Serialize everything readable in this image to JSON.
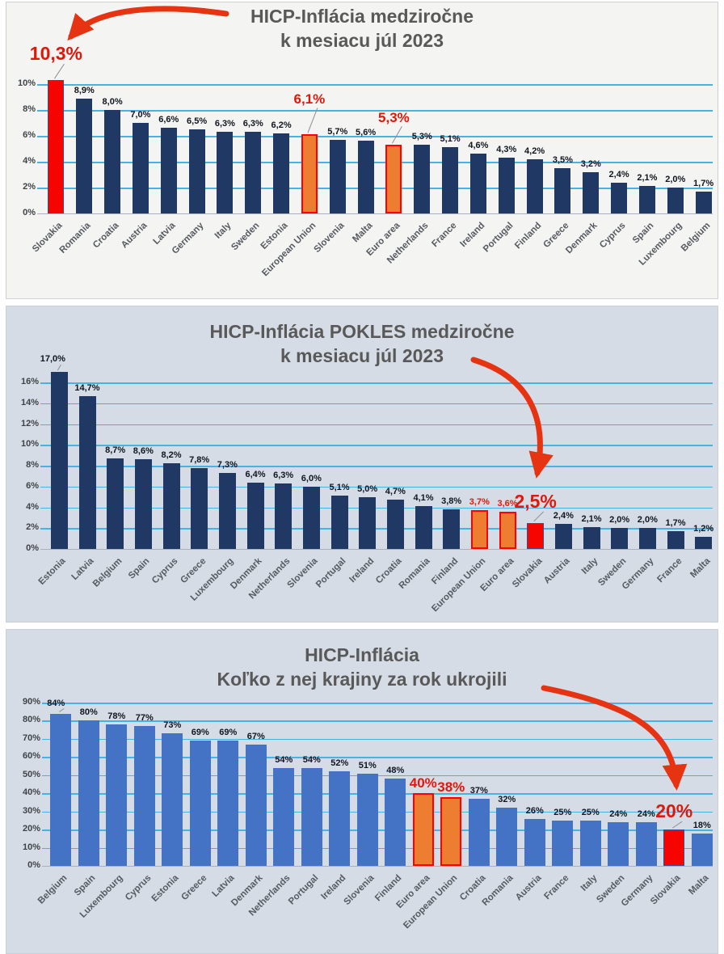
{
  "colors": {
    "navy_bar": "#1f3864",
    "blue_bar": "#4472c4",
    "red_bar": "#f50400",
    "orange_bar": "#ed7d31",
    "orange_border": "#fe0000",
    "gridline": "#45b4e2",
    "title_text": "#595959",
    "label_dark": "#10151f",
    "label_red": "#e0180b",
    "arrow_red": "#e63312",
    "panel1_bg": "#f4f4f2",
    "panel2_bg": "#d6dce5",
    "panel3_bg": "#d6dce5"
  },
  "chart_data": [
    {
      "type": "bar",
      "title": "HICP-Inflácia medziročne k mesiacu júl 2023",
      "title_line1": "HICP-Inflácia medziročne",
      "title_line2": "k mesiacu júl 2023",
      "xlabel": "",
      "ylabel": "",
      "ylim": [
        0,
        10.5
      ],
      "grid": true,
      "legend": "none",
      "yticks": [
        "0%",
        "2%",
        "4%",
        "6%",
        "8%",
        "10%"
      ],
      "default_fill": "navy",
      "arrow_target": "Slovakia",
      "bars": [
        {
          "category": "Slovakia",
          "value": 10.3,
          "display": "10,3%",
          "fill": "red",
          "label_size": "xl",
          "label_color": "red",
          "label_dy": -46,
          "leader": true
        },
        {
          "category": "Romania",
          "value": 8.9,
          "display": "8,9%"
        },
        {
          "category": "Croatia",
          "value": 8.0,
          "display": "8,0%"
        },
        {
          "category": "Austria",
          "value": 7.0,
          "display": "7,0%"
        },
        {
          "category": "Latvia",
          "value": 6.6,
          "display": "6,6%"
        },
        {
          "category": "Germany",
          "value": 6.5,
          "display": "6,5%"
        },
        {
          "category": "Italy",
          "value": 6.3,
          "display": "6,3%"
        },
        {
          "category": "Sweden",
          "value": 6.3,
          "display": "6,3%"
        },
        {
          "category": "Estonia",
          "value": 6.2,
          "display": "6,2%"
        },
        {
          "category": "European Union",
          "value": 6.1,
          "display": "6,1%",
          "fill": "orange",
          "label_size": "l",
          "label_color": "red",
          "label_dy": -53,
          "leader": true
        },
        {
          "category": "Slovenia",
          "value": 5.7,
          "display": "5,7%"
        },
        {
          "category": "Malta",
          "value": 5.6,
          "display": "5,6%"
        },
        {
          "category": "Euro area",
          "value": 5.3,
          "display": "5,3%",
          "fill": "orange",
          "label_size": "l",
          "label_color": "red",
          "label_dy": -43,
          "leader": true
        },
        {
          "category": "Netherlands",
          "value": 5.3,
          "display": "5,3%"
        },
        {
          "category": "France",
          "value": 5.1,
          "display": "5,1%"
        },
        {
          "category": "Ireland",
          "value": 4.6,
          "display": "4,6%"
        },
        {
          "category": "Portugal",
          "value": 4.3,
          "display": "4,3%"
        },
        {
          "category": "Finland",
          "value": 4.2,
          "display": "4,2%"
        },
        {
          "category": "Greece",
          "value": 3.5,
          "display": "3,5%"
        },
        {
          "category": "Denmark",
          "value": 3.2,
          "display": "3,2%"
        },
        {
          "category": "Cyprus",
          "value": 2.4,
          "display": "2,4%"
        },
        {
          "category": "Spain",
          "value": 2.1,
          "display": "2,1%"
        },
        {
          "category": "Luxembourg",
          "value": 2.0,
          "display": "2,0%"
        },
        {
          "category": "Belgium",
          "value": 1.7,
          "display": "1,7%"
        }
      ]
    },
    {
      "type": "bar",
      "title": "HICP-Inflácia POKLES medziročne k mesiacu júl 2023",
      "title_line1": "HICP-Inflácia POKLES medziročne",
      "title_line2": "k mesiacu júl 2023",
      "xlabel": "",
      "ylabel": "",
      "ylim": [
        0,
        17.5
      ],
      "grid": true,
      "legend": "none",
      "yticks": [
        "0%",
        "2%",
        "4%",
        "6%",
        "8%",
        "10%",
        "12%",
        "14%",
        "16%"
      ],
      "default_fill": "navy",
      "arrow_target": "Slovakia",
      "bars": [
        {
          "category": "Estonia",
          "value": 17.0,
          "display": "17,0%",
          "label_dy": -22,
          "label_dx": -8,
          "leader": true
        },
        {
          "category": "Latvia",
          "value": 14.7,
          "display": "14,7%"
        },
        {
          "category": "Belgium",
          "value": 8.7,
          "display": "8,7%"
        },
        {
          "category": "Spain",
          "value": 8.6,
          "display": "8,6%"
        },
        {
          "category": "Cyprus",
          "value": 8.2,
          "display": "8,2%"
        },
        {
          "category": "Greece",
          "value": 7.8,
          "display": "7,8%"
        },
        {
          "category": "Luxembourg",
          "value": 7.3,
          "display": "7,3%"
        },
        {
          "category": "Denmark",
          "value": 6.4,
          "display": "6,4%"
        },
        {
          "category": "Netherlands",
          "value": 6.3,
          "display": "6,3%"
        },
        {
          "category": "Slovenia",
          "value": 6.0,
          "display": "6,0%"
        },
        {
          "category": "Portugal",
          "value": 5.1,
          "display": "5,1%"
        },
        {
          "category": "Ireland",
          "value": 5.0,
          "display": "5,0%"
        },
        {
          "category": "Croatia",
          "value": 4.7,
          "display": "4,7%"
        },
        {
          "category": "Romania",
          "value": 4.1,
          "display": "4,1%"
        },
        {
          "category": "Finland",
          "value": 3.8,
          "display": "3,8%"
        },
        {
          "category": "European Union",
          "value": 3.7,
          "display": "3,7%",
          "fill": "orange",
          "label_color": "red"
        },
        {
          "category": "Euro area",
          "value": 3.6,
          "display": "3,6%",
          "fill": "orange",
          "label_color": "red"
        },
        {
          "category": "Slovakia",
          "value": 2.5,
          "display": "2,5%",
          "fill": "red",
          "label_size": "xl",
          "label_color": "red",
          "label_dy": -40,
          "leader": true
        },
        {
          "category": "Austria",
          "value": 2.4,
          "display": "2,4%"
        },
        {
          "category": "Italy",
          "value": 2.1,
          "display": "2,1%"
        },
        {
          "category": "Sweden",
          "value": 2.0,
          "display": "2,0%"
        },
        {
          "category": "Germany",
          "value": 2.0,
          "display": "2,0%"
        },
        {
          "category": "France",
          "value": 1.7,
          "display": "1,7%"
        },
        {
          "category": "Malta",
          "value": 1.2,
          "display": "1,2%"
        }
      ]
    },
    {
      "type": "bar",
      "title": "HICP-Inflácia Koľko z nej krajiny za rok ukrojili",
      "title_line1": "HICP-Inflácia",
      "title_line2": "Koľko z nej krajiny za rok ukrojili",
      "xlabel": "",
      "ylabel": "",
      "ylim": [
        0,
        90
      ],
      "grid": true,
      "legend": "none",
      "yticks": [
        "0%",
        "10%",
        "20%",
        "30%",
        "40%",
        "50%",
        "60%",
        "70%",
        "80%",
        "90%"
      ],
      "default_fill": "blue",
      "arrow_target": "Slovakia",
      "bars": [
        {
          "category": "Belgium",
          "value": 84,
          "display": "84%",
          "label_dx": -6,
          "label_dy": -19,
          "leader": true
        },
        {
          "category": "Spain",
          "value": 80,
          "display": "80%"
        },
        {
          "category": "Luxembourg",
          "value": 78,
          "display": "78%"
        },
        {
          "category": "Cyprus",
          "value": 77,
          "display": "77%"
        },
        {
          "category": "Estonia",
          "value": 73,
          "display": "73%"
        },
        {
          "category": "Greece",
          "value": 69,
          "display": "69%"
        },
        {
          "category": "Latvia",
          "value": 69,
          "display": "69%"
        },
        {
          "category": "Denmark",
          "value": 67,
          "display": "67%"
        },
        {
          "category": "Netherlands",
          "value": 54,
          "display": "54%"
        },
        {
          "category": "Portugal",
          "value": 54,
          "display": "54%"
        },
        {
          "category": "Ireland",
          "value": 52,
          "display": "52%"
        },
        {
          "category": "Slovenia",
          "value": 51,
          "display": "51%"
        },
        {
          "category": "Finland",
          "value": 48,
          "display": "48%"
        },
        {
          "category": "Euro area",
          "value": 40,
          "display": "40%",
          "fill": "orange",
          "label_size": "l",
          "label_color": "red",
          "label_dy": -22
        },
        {
          "category": "European Union",
          "value": 38,
          "display": "38%",
          "fill": "orange",
          "label_size": "l",
          "label_color": "red",
          "label_dy": -22
        },
        {
          "category": "Croatia",
          "value": 37,
          "display": "37%"
        },
        {
          "category": "Romania",
          "value": 32,
          "display": "32%"
        },
        {
          "category": "Austria",
          "value": 26,
          "display": "26%"
        },
        {
          "category": "France",
          "value": 25,
          "display": "25%"
        },
        {
          "category": "Italy",
          "value": 25,
          "display": "25%"
        },
        {
          "category": "Sweden",
          "value": 24,
          "display": "24%"
        },
        {
          "category": "Germany",
          "value": 24,
          "display": "24%"
        },
        {
          "category": "Slovakia",
          "value": 20,
          "display": "20%",
          "fill": "red",
          "label_size": "xl",
          "label_color": "red",
          "label_dy": -36,
          "leader": true
        },
        {
          "category": "Malta",
          "value": 18,
          "display": "18%"
        }
      ]
    }
  ]
}
